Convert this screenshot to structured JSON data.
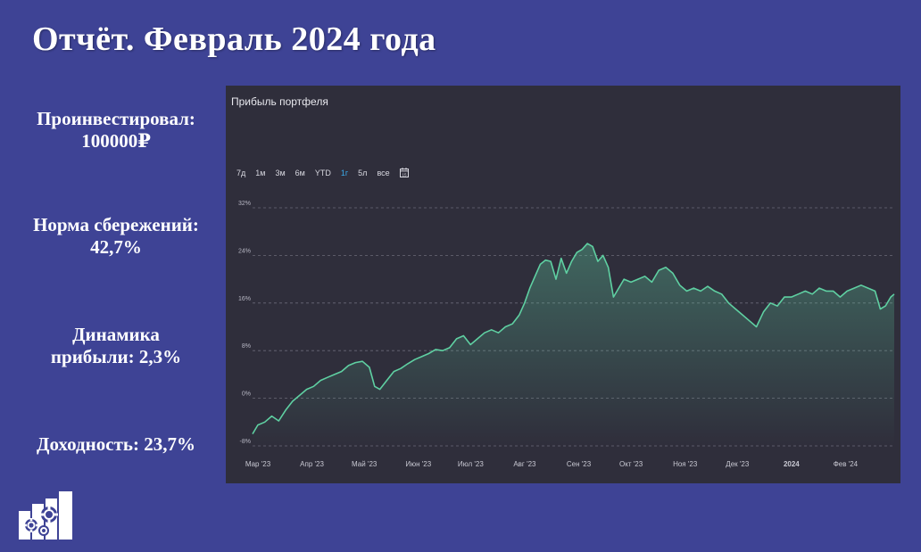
{
  "title": "Отчёт. Февраль 2024 года",
  "stats": [
    {
      "label": "Проинвестировал:",
      "value": "100000₽"
    },
    {
      "label": "Норма сбережений:",
      "value": "42,7%"
    },
    {
      "label": "Динамика",
      "value": "прибыли: 2,3%"
    },
    {
      "label": "Доходность: 23,7%",
      "value": ""
    }
  ],
  "panel": {
    "title": "Прибыль портфеля",
    "ranges": [
      "7д",
      "1м",
      "3м",
      "6м",
      "YTD",
      "1г",
      "5л",
      "все"
    ],
    "active_range": "1г",
    "calendar_icon": "calendar-icon"
  },
  "colors": {
    "background": "#3e4395",
    "panel": "#2f2e3b",
    "line": "#5fd0a2",
    "active_range": "#3aa9e8"
  },
  "chart_data": {
    "type": "area",
    "title": "Прибыль портфеля",
    "xlabel": "",
    "ylabel": "",
    "ylim": [
      -8,
      32
    ],
    "yticks": [
      "-8%",
      "0%",
      "8%",
      "16%",
      "24%",
      "32%"
    ],
    "ytick_values": [
      -8,
      0,
      8,
      16,
      24,
      32
    ],
    "xticks": [
      "Мар '23",
      "Апр '23",
      "Май '23",
      "Июн '23",
      "Июл '23",
      "Авг '23",
      "Сен '23",
      "Окт '23",
      "Ноя '23",
      "Дек '23",
      "2024",
      "Фев '24"
    ],
    "xtick_dates": [
      "2023-03-01",
      "2023-04-01",
      "2023-05-01",
      "2023-06-01",
      "2023-07-01",
      "2023-08-01",
      "2023-09-01",
      "2023-10-01",
      "2023-11-01",
      "2023-12-01",
      "2024-01-01",
      "2024-02-01"
    ],
    "grid": true,
    "series": [
      {
        "points": [
          [
            "2023-03-01",
            -6.0
          ],
          [
            "2023-03-04",
            -4.5
          ],
          [
            "2023-03-08",
            -4.0
          ],
          [
            "2023-03-12",
            -3.0
          ],
          [
            "2023-03-16",
            -3.8
          ],
          [
            "2023-03-20",
            -2.0
          ],
          [
            "2023-03-24",
            -0.5
          ],
          [
            "2023-03-28",
            0.5
          ],
          [
            "2023-04-01",
            1.5
          ],
          [
            "2023-04-05",
            2.0
          ],
          [
            "2023-04-09",
            3.0
          ],
          [
            "2023-04-13",
            3.5
          ],
          [
            "2023-04-17",
            4.0
          ],
          [
            "2023-04-21",
            4.5
          ],
          [
            "2023-04-25",
            5.5
          ],
          [
            "2023-04-29",
            6.0
          ],
          [
            "2023-05-03",
            6.2
          ],
          [
            "2023-05-07",
            5.2
          ],
          [
            "2023-05-10",
            2.0
          ],
          [
            "2023-05-13",
            1.5
          ],
          [
            "2023-05-17",
            3.0
          ],
          [
            "2023-05-21",
            4.5
          ],
          [
            "2023-05-25",
            5.0
          ],
          [
            "2023-05-29",
            5.8
          ],
          [
            "2023-06-02",
            6.5
          ],
          [
            "2023-06-06",
            7.0
          ],
          [
            "2023-06-10",
            7.5
          ],
          [
            "2023-06-14",
            8.2
          ],
          [
            "2023-06-18",
            8.0
          ],
          [
            "2023-06-22",
            8.5
          ],
          [
            "2023-06-26",
            10.0
          ],
          [
            "2023-06-30",
            10.5
          ],
          [
            "2023-07-04",
            9.0
          ],
          [
            "2023-07-08",
            10.0
          ],
          [
            "2023-07-12",
            11.0
          ],
          [
            "2023-07-16",
            11.5
          ],
          [
            "2023-07-20",
            11.0
          ],
          [
            "2023-07-24",
            12.0
          ],
          [
            "2023-07-28",
            12.5
          ],
          [
            "2023-08-01",
            14.0
          ],
          [
            "2023-08-04",
            16.0
          ],
          [
            "2023-08-07",
            18.5
          ],
          [
            "2023-08-10",
            20.5
          ],
          [
            "2023-08-13",
            22.5
          ],
          [
            "2023-08-16",
            23.2
          ],
          [
            "2023-08-19",
            23.0
          ],
          [
            "2023-08-22",
            20.0
          ],
          [
            "2023-08-25",
            23.5
          ],
          [
            "2023-08-28",
            21.0
          ],
          [
            "2023-08-31",
            23.0
          ],
          [
            "2023-09-03",
            24.5
          ],
          [
            "2023-09-06",
            25.0
          ],
          [
            "2023-09-09",
            26.0
          ],
          [
            "2023-09-12",
            25.5
          ],
          [
            "2023-09-15",
            23.0
          ],
          [
            "2023-09-18",
            24.0
          ],
          [
            "2023-09-21",
            22.0
          ],
          [
            "2023-09-24",
            17.0
          ],
          [
            "2023-09-27",
            18.5
          ],
          [
            "2023-09-30",
            20.0
          ],
          [
            "2023-10-04",
            19.5
          ],
          [
            "2023-10-08",
            20.0
          ],
          [
            "2023-10-12",
            20.5
          ],
          [
            "2023-10-16",
            19.5
          ],
          [
            "2023-10-20",
            21.5
          ],
          [
            "2023-10-24",
            22.0
          ],
          [
            "2023-10-28",
            21.0
          ],
          [
            "2023-11-01",
            19.0
          ],
          [
            "2023-11-05",
            18.0
          ],
          [
            "2023-11-09",
            18.5
          ],
          [
            "2023-11-13",
            18.0
          ],
          [
            "2023-11-17",
            18.8
          ],
          [
            "2023-11-21",
            18.0
          ],
          [
            "2023-11-25",
            17.5
          ],
          [
            "2023-11-29",
            16.0
          ],
          [
            "2023-12-03",
            15.0
          ],
          [
            "2023-12-07",
            14.0
          ],
          [
            "2023-12-11",
            13.0
          ],
          [
            "2023-12-15",
            12.0
          ],
          [
            "2023-12-19",
            14.5
          ],
          [
            "2023-12-23",
            16.0
          ],
          [
            "2023-12-27",
            15.5
          ],
          [
            "2023-12-31",
            17.0
          ],
          [
            "2024-01-04",
            17.0
          ],
          [
            "2024-01-08",
            17.5
          ],
          [
            "2024-01-12",
            18.0
          ],
          [
            "2024-01-16",
            17.5
          ],
          [
            "2024-01-20",
            18.5
          ],
          [
            "2024-01-24",
            18.0
          ],
          [
            "2024-01-28",
            18.0
          ],
          [
            "2024-02-01",
            17.0
          ],
          [
            "2024-02-05",
            18.0
          ],
          [
            "2024-02-09",
            18.5
          ],
          [
            "2024-02-13",
            19.0
          ],
          [
            "2024-02-17",
            18.5
          ],
          [
            "2024-02-21",
            18.0
          ],
          [
            "2024-02-24",
            15.0
          ],
          [
            "2024-02-27",
            15.5
          ],
          [
            "2024-03-01",
            17.0
          ],
          [
            "2024-03-03",
            17.5
          ]
        ]
      }
    ]
  }
}
